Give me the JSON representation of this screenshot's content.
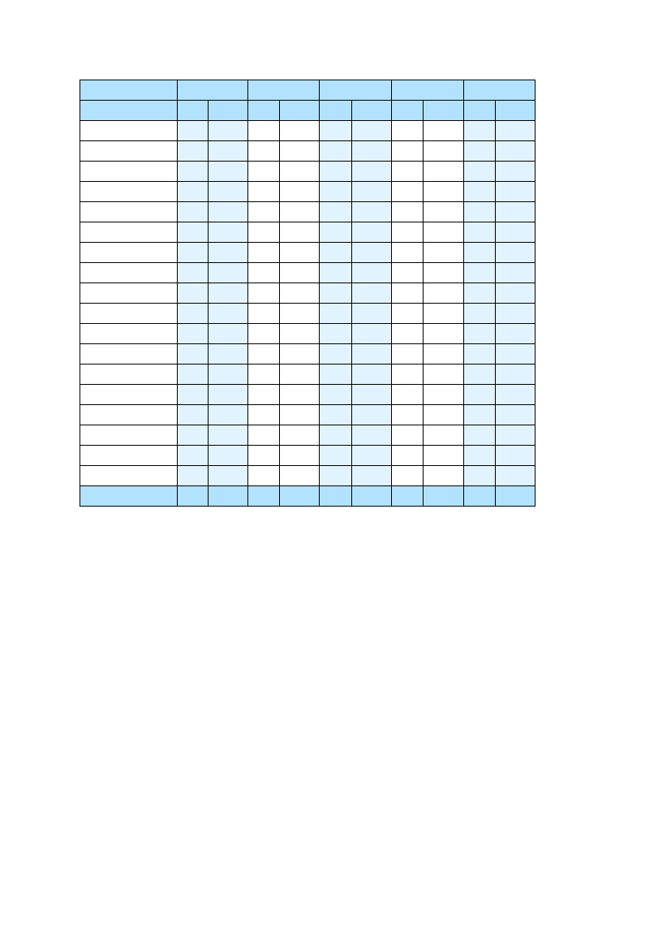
{
  "colors": {
    "header": "#b3e2ff",
    "shaded": "#e1f3ff",
    "plain": "#ffffff",
    "border": "#000000"
  },
  "table": {
    "cells_text": []
  }
}
